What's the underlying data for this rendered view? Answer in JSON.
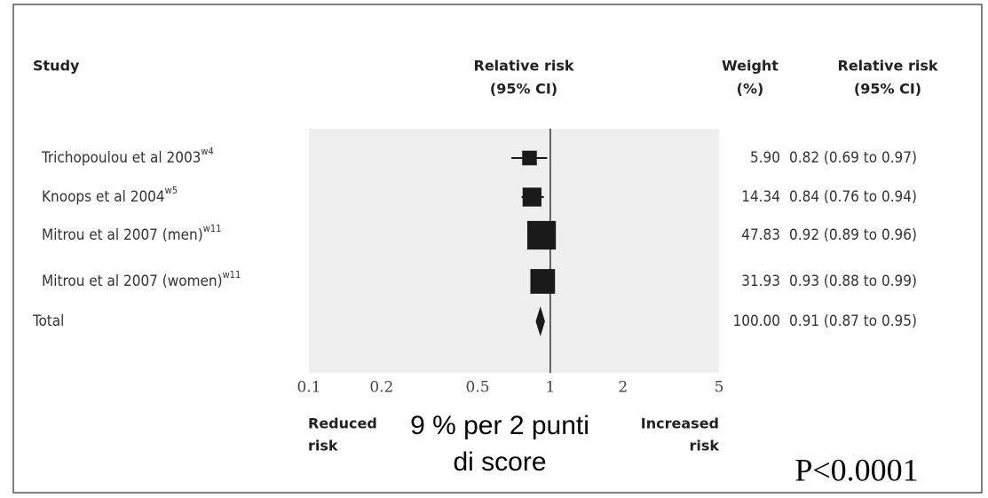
{
  "chart_data": {
    "type": "forest",
    "headers": {
      "study": "Study",
      "plot": [
        "Relative risk",
        "(95% CI)"
      ],
      "weight": [
        "Weight",
        "(%)"
      ],
      "ci": [
        "Relative risk",
        "(95% CI)"
      ]
    },
    "categories": [
      "Trichopoulou et al 2003",
      "Knoops et al 2004",
      "Mitrou et al 2007 (men)",
      "Mitrou et al 2007 (women)",
      "Total"
    ],
    "superscripts": [
      "w4",
      "w5",
      "w11",
      "w11",
      null
    ],
    "values": [
      0.82,
      0.84,
      0.92,
      0.93,
      0.91
    ],
    "lower": [
      0.69,
      0.76,
      0.89,
      0.88,
      0.87
    ],
    "upper": [
      0.97,
      0.94,
      0.96,
      0.99,
      0.95
    ],
    "weights": [
      5.9,
      14.34,
      47.83,
      31.93,
      100
    ],
    "weight_labels": [
      "5.90",
      "14.34",
      "47.83",
      "31.93",
      "100.00"
    ],
    "ci_labels": [
      "0.82 (0.69 to 0.97)",
      "0.84 (0.76 to 0.94)",
      "0.92 (0.89 to 0.96)",
      "0.93 (0.88 to 0.99)",
      "0.91 (0.87 to 0.95)"
    ],
    "xlim": [
      0.1,
      5
    ],
    "xticks": [
      0.1,
      0.2,
      0.5,
      1,
      2,
      5
    ],
    "log_x": true,
    "reference_line": 1,
    "color": "#1a1a1a",
    "panel_color": "#efefef",
    "left_label": [
      "Reduced",
      "risk"
    ],
    "right_label": [
      "Increased",
      "risk"
    ],
    "annotation": [
      "9 % per 2 punti",
      "di score"
    ],
    "p_value": "P<0.0001"
  }
}
